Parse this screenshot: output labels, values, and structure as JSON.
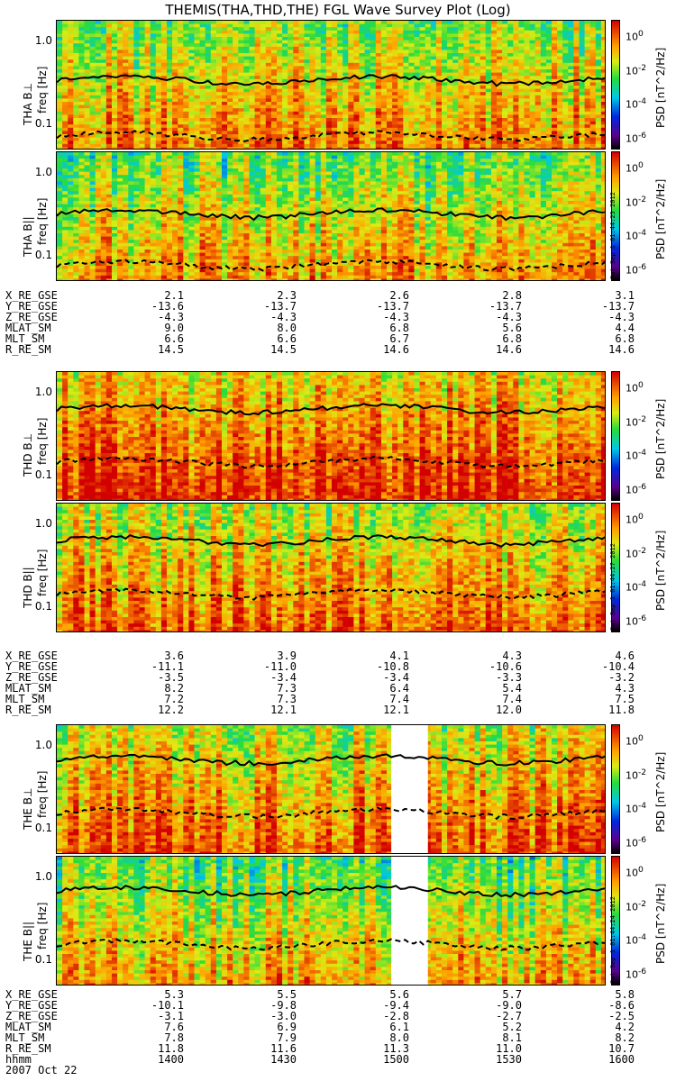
{
  "title": "THEMIS(THA,THD,THE) FGL Wave Survey Plot (Log)",
  "freq_ticks": [
    "1.0",
    "0.1"
  ],
  "colorbar": {
    "ticks": [
      "10^0",
      "10^-2",
      "10^-4",
      "10^-6"
    ],
    "label": "PSD [nT^2/Hz]"
  },
  "panels": [
    {
      "label": "THA B⊥",
      "axis": "freq [Hz]",
      "stamp": ""
    },
    {
      "label": "THA B||",
      "axis": "freq [Hz]",
      "stamp": "Sat Sep 1 01:44:25 2012"
    },
    {
      "label": "THD B⊥",
      "axis": "freq [Hz]",
      "stamp": ""
    },
    {
      "label": "THD B||",
      "axis": "freq [Hz]",
      "stamp": "Sat Sep 1 01:44:27 2012"
    },
    {
      "label": "THE B⊥",
      "axis": "freq [Hz]",
      "stamp": ""
    },
    {
      "label": "THE B||",
      "axis": "freq [Hz]",
      "stamp": "Sat Sep 1 01:44:24 2012"
    }
  ],
  "ephemeris": [
    {
      "rows": [
        [
          "X_RE_GSE",
          "2.1",
          "2.3",
          "2.6",
          "2.8",
          "3.1"
        ],
        [
          "Y_RE_GSE",
          "-13.6",
          "-13.7",
          "-13.7",
          "-13.7",
          "-13.7"
        ],
        [
          "Z_RE_GSE",
          "-4.3",
          "-4.3",
          "-4.3",
          "-4.3",
          "-4.3"
        ],
        [
          "MLAT_SM",
          "9.0",
          "8.0",
          "6.8",
          "5.6",
          "4.4"
        ],
        [
          "MLT_SM",
          "6.6",
          "6.6",
          "6.7",
          "6.8",
          "6.8"
        ],
        [
          "R_RE_SM",
          "14.5",
          "14.5",
          "14.6",
          "14.6",
          "14.6"
        ]
      ]
    },
    {
      "rows": [
        [
          "X_RE_GSE",
          "3.6",
          "3.9",
          "4.1",
          "4.3",
          "4.6"
        ],
        [
          "Y_RE_GSE",
          "-11.1",
          "-11.0",
          "-10.8",
          "-10.6",
          "-10.4"
        ],
        [
          "Z_RE_GSE",
          "-3.5",
          "-3.4",
          "-3.4",
          "-3.3",
          "-3.2"
        ],
        [
          "MLAT_SM",
          "8.2",
          "7.3",
          "6.4",
          "5.4",
          "4.3"
        ],
        [
          "MLT_SM",
          "7.2",
          "7.3",
          "7.4",
          "7.4",
          "7.5"
        ],
        [
          "R_RE_SM",
          "12.2",
          "12.1",
          "12.1",
          "12.0",
          "11.8"
        ]
      ]
    },
    {
      "rows": [
        [
          "X_RE_GSE",
          "5.3",
          "5.5",
          "5.6",
          "5.7",
          "5.8"
        ],
        [
          "Y_RE_GSE",
          "-10.1",
          "-9.8",
          "-9.4",
          "-9.0",
          "-8.6"
        ],
        [
          "Z_RE_GSE",
          "-3.1",
          "-3.0",
          "-2.8",
          "-2.7",
          "-2.5"
        ],
        [
          "MLAT_SM",
          "7.6",
          "6.9",
          "6.1",
          "5.2",
          "4.2"
        ],
        [
          "MLT_SM",
          "7.8",
          "7.9",
          "8.0",
          "8.1",
          "8.2"
        ],
        [
          "R_RE_SM",
          "11.8",
          "11.6",
          "11.3",
          "11.0",
          "10.7"
        ],
        [
          "hhmm",
          "1400",
          "1430",
          "1500",
          "1530",
          "1600"
        ]
      ]
    }
  ],
  "date": "2007 Oct 22",
  "chart_data": {
    "type": "heatmap",
    "title": "THEMIS(THA,THD,THE) FGL Wave Survey Plot (Log)",
    "xlabel": "hhmm",
    "ylabel": "freq [Hz]",
    "x_ticks": [
      "1400",
      "1430",
      "1500",
      "1530",
      "1600"
    ],
    "xlim": [
      "1400",
      "1600"
    ],
    "ylim_hz": [
      0.05,
      1.8
    ],
    "y_scale": "log",
    "colorbar": {
      "label": "PSD [nT^2/Hz]",
      "scale": "log",
      "range": [
        1e-07,
        10
      ]
    },
    "series": [
      {
        "name": "THA B⊥",
        "line_solid_hz": 0.35,
        "line_dashed_hz": 0.075,
        "mean_log_psd": -1.2
      },
      {
        "name": "THA B||",
        "line_solid_hz": 0.33,
        "line_dashed_hz": 0.08,
        "mean_log_psd": -1.5
      },
      {
        "name": "THD B⊥",
        "line_solid_hz": 0.65,
        "line_dashed_hz": 0.15,
        "mean_log_psd": -0.3
      },
      {
        "name": "THD B||",
        "line_solid_hz": 0.65,
        "line_dashed_hz": 0.15,
        "mean_log_psd": -0.9
      },
      {
        "name": "THE B⊥",
        "line_solid_hz": 0.7,
        "line_dashed_hz": 0.16,
        "mean_log_psd": -0.8,
        "data_gap": [
          "1513",
          "1521"
        ]
      },
      {
        "name": "THE B||",
        "line_solid_hz": 0.7,
        "line_dashed_hz": 0.16,
        "mean_log_psd": -1.6,
        "data_gap": [
          "1513",
          "1521"
        ]
      }
    ]
  }
}
